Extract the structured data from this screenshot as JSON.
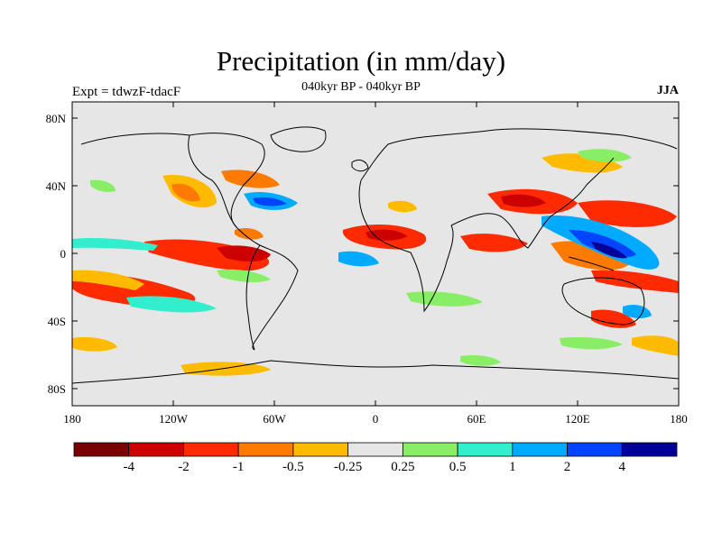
{
  "title": "Precipitation (in mm/day)",
  "subtitle": "040kyr BP - 040kyr BP",
  "left_label": "Expt = tdwzF-tdacF",
  "right_label": "JJA",
  "lat_ticks": [
    "80N",
    "40N",
    "0",
    "40S",
    "80S"
  ],
  "lon_ticks": [
    "180",
    "120W",
    "60W",
    "0",
    "60E",
    "120E",
    "180"
  ],
  "colorbar": {
    "colors": [
      "#7a0000",
      "#cc0000",
      "#ff2a00",
      "#ff7a00",
      "#ffbb00",
      "#e6e6e6",
      "#88ee66",
      "#33eecc",
      "#00aaff",
      "#0044ff",
      "#000099"
    ],
    "labels": [
      "-4",
      "-2",
      "-1",
      "-0.5",
      "-0.25",
      "0.25",
      "0.5",
      "1",
      "2",
      "4"
    ]
  },
  "colors": {
    "background": "#e6e6e6",
    "coast": "#000000"
  }
}
